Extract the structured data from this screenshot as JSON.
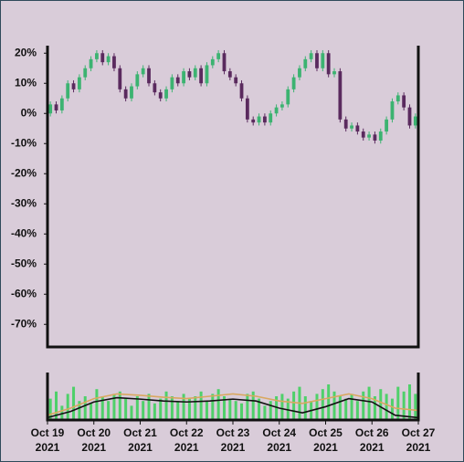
{
  "chart_data": [
    {
      "type": "candlestick",
      "x": [
        0.0625,
        0.1875,
        0.3125,
        0.4375,
        0.5625,
        0.6875,
        0.8125,
        0.9375,
        1.0625,
        1.1875,
        1.3125,
        1.4375,
        1.5625,
        1.6875,
        1.8125,
        1.9375,
        2.0625,
        2.1875,
        2.3125,
        2.4375,
        2.5625,
        2.6875,
        2.8125,
        2.9375,
        3.0625,
        3.1875,
        3.3125,
        3.4375,
        3.5625,
        3.6875,
        3.8125,
        3.9375,
        4.0625,
        4.1875,
        4.3125,
        4.4375,
        4.5625,
        4.6875,
        4.8125,
        4.9375,
        5.0625,
        5.1875,
        5.3125,
        5.4375,
        5.5625,
        5.6875,
        5.8125,
        5.9375,
        6.0625,
        6.1875,
        6.3125,
        6.4375,
        6.5625,
        6.6875,
        6.8125,
        6.9375,
        7.0625,
        7.1875,
        7.3125,
        7.4375,
        7.5625,
        7.6875,
        7.8125,
        7.9375
      ],
      "open": [
        0,
        3,
        1,
        5,
        10,
        8,
        12,
        15,
        18,
        20,
        17,
        19,
        15,
        8,
        5,
        9,
        13,
        15,
        10,
        7,
        5,
        8,
        12,
        10,
        14,
        12,
        15,
        10,
        16,
        18,
        20,
        14,
        12,
        10,
        5,
        -2,
        -3,
        -1,
        -3,
        0,
        2,
        3,
        8,
        12,
        15,
        18,
        20,
        15,
        20,
        13,
        14,
        -2,
        -5,
        -4,
        -6,
        -8,
        -7,
        -9,
        -6,
        -2,
        4,
        6,
        2,
        -4
      ],
      "high": [
        4,
        4,
        6,
        11,
        11,
        13,
        16,
        19,
        21,
        21,
        20,
        20,
        16,
        9,
        10,
        14,
        16,
        16,
        11,
        8,
        9,
        13,
        13,
        15,
        15,
        16,
        16,
        17,
        19,
        21,
        21,
        15,
        13,
        11,
        6,
        -1,
        0,
        0,
        1,
        3,
        4,
        9,
        13,
        16,
        19,
        21,
        21,
        21,
        21,
        15,
        15,
        -1,
        -3,
        -3,
        -5,
        -6,
        -6,
        -5,
        -1,
        5,
        7,
        7,
        3,
        0
      ],
      "low": [
        -1,
        0,
        0,
        4,
        7,
        7,
        11,
        14,
        17,
        16,
        16,
        14,
        7,
        4,
        4,
        8,
        12,
        9,
        6,
        4,
        4,
        7,
        9,
        9,
        11,
        11,
        9,
        9,
        15,
        17,
        13,
        11,
        9,
        4,
        -3,
        -4,
        -4,
        -4,
        -4,
        -1,
        1,
        2,
        7,
        11,
        14,
        17,
        14,
        14,
        12,
        12,
        -3,
        -6,
        -6,
        -7,
        -9,
        -9,
        -10,
        -10,
        -7,
        -3,
        3,
        1,
        -5,
        -5
      ],
      "close": [
        3,
        1,
        5,
        10,
        8,
        12,
        15,
        18,
        20,
        17,
        19,
        15,
        8,
        5,
        9,
        13,
        15,
        10,
        7,
        5,
        8,
        12,
        10,
        14,
        12,
        15,
        10,
        16,
        18,
        20,
        14,
        12,
        10,
        5,
        -2,
        -3,
        -1,
        -3,
        0,
        2,
        3,
        8,
        12,
        15,
        18,
        20,
        15,
        20,
        13,
        14,
        -2,
        -5,
        -4,
        -6,
        -8,
        -7,
        -9,
        -6,
        -2,
        4,
        6,
        2,
        -4,
        -1
      ],
      "up_color": "#3cb371",
      "down_color": "#5a2a5e",
      "xlim": [
        0,
        8
      ],
      "ylim": [
        -77.5,
        22.5
      ],
      "yticks": [
        {
          "value": 20,
          "label": "20%"
        },
        {
          "value": 10,
          "label": "10%"
        },
        {
          "value": 0,
          "label": "0%"
        },
        {
          "value": -10,
          "label": "-10%"
        },
        {
          "value": -20,
          "label": "-20%"
        },
        {
          "value": -30,
          "label": "-30%"
        },
        {
          "value": -40,
          "label": "-40%"
        },
        {
          "value": -50,
          "label": "-50%"
        },
        {
          "value": -60,
          "label": "-60%"
        },
        {
          "value": -70,
          "label": "-70%"
        }
      ]
    },
    {
      "type": "bar",
      "x": [
        0.0625,
        0.1875,
        0.3125,
        0.4375,
        0.5625,
        0.6875,
        0.8125,
        0.9375,
        1.0625,
        1.1875,
        1.3125,
        1.4375,
        1.5625,
        1.6875,
        1.8125,
        1.9375,
        2.0625,
        2.1875,
        2.3125,
        2.4375,
        2.5625,
        2.6875,
        2.8125,
        2.9375,
        3.0625,
        3.1875,
        3.3125,
        3.4375,
        3.5625,
        3.6875,
        3.8125,
        3.9375,
        4.0625,
        4.1875,
        4.3125,
        4.4375,
        4.5625,
        4.6875,
        4.8125,
        4.9375,
        5.0625,
        5.1875,
        5.3125,
        5.4375,
        5.5625,
        5.6875,
        5.8125,
        5.9375,
        6.0625,
        6.1875,
        6.3125,
        6.4375,
        6.5625,
        6.6875,
        6.8125,
        6.9375,
        7.0625,
        7.1875,
        7.3125,
        7.4375,
        7.5625,
        7.6875,
        7.8125,
        7.9375
      ],
      "values": [
        45,
        60,
        30,
        55,
        70,
        40,
        50,
        35,
        65,
        50,
        40,
        55,
        60,
        45,
        30,
        50,
        40,
        55,
        35,
        45,
        60,
        50,
        40,
        55,
        45,
        50,
        60,
        40,
        55,
        65,
        50,
        45,
        40,
        35,
        55,
        60,
        45,
        30,
        40,
        50,
        55,
        45,
        60,
        70,
        50,
        40,
        55,
        65,
        75,
        60,
        50,
        45,
        55,
        40,
        60,
        70,
        50,
        65,
        55,
        45,
        70,
        60,
        75,
        55
      ],
      "color": "#4fd06a",
      "lines": [
        {
          "color": "#111111",
          "x": [
            0,
            0.5,
            1,
            1.5,
            2,
            2.5,
            3,
            3.5,
            4,
            4.5,
            5,
            5.5,
            6,
            6.5,
            7,
            7.5,
            8
          ],
          "values": [
            5,
            18,
            38,
            47,
            44,
            40,
            38,
            40,
            44,
            40,
            25,
            15,
            28,
            45,
            38,
            10,
            5
          ]
        },
        {
          "color": "#d9a860",
          "x": [
            0,
            0.5,
            1,
            1.5,
            2,
            2.5,
            3,
            3.5,
            4,
            4.5,
            5,
            5.5,
            6,
            6.5,
            7,
            7.5,
            8
          ],
          "values": [
            10,
            25,
            45,
            55,
            52,
            48,
            45,
            50,
            55,
            50,
            40,
            35,
            45,
            55,
            45,
            25,
            20
          ]
        }
      ],
      "xlim": [
        0,
        8
      ],
      "ylim": [
        0,
        100
      ],
      "xticks": [
        {
          "value": 0,
          "label": "Oct 19\n2021"
        },
        {
          "value": 1,
          "label": "Oct 20\n2021"
        },
        {
          "value": 2,
          "label": "Oct 21\n2021"
        },
        {
          "value": 3,
          "label": "Oct 22\n2021"
        },
        {
          "value": 4,
          "label": "Oct 23\n2021"
        },
        {
          "value": 5,
          "label": "Oct 24\n2021"
        },
        {
          "value": 6,
          "label": "Oct 25\n2021"
        },
        {
          "value": 7,
          "label": "Oct 26\n2021"
        },
        {
          "value": 8,
          "label": "Oct 27\n2021"
        }
      ]
    }
  ]
}
